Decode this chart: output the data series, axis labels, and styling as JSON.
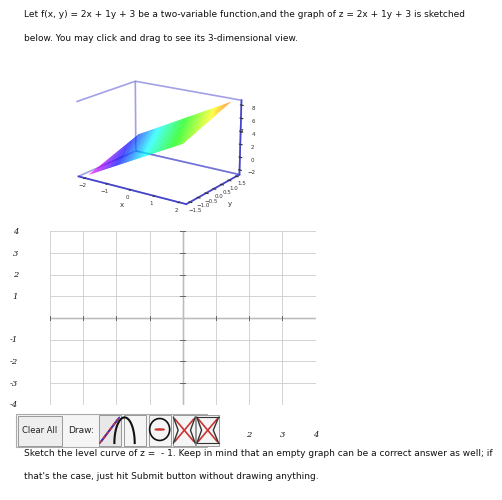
{
  "title_line1": "Let f(x, y) = 2x + 1y + 3 be a two-variable function,and the graph of z = 2x + 1y + 3 is sketched",
  "title_line2": "below. You may click and drag to see its 3-dimensional view.",
  "bottom_text_line1": "Sketch the level curve of z =  - 1. Keep in mind that an empty graph can be a correct answer as well; if",
  "bottom_text_line2": "that's the case, just hit Submit button without drawing anything.",
  "grid_xlim": [
    -4,
    4
  ],
  "grid_ylim": [
    -4,
    4
  ],
  "bg_color": "#ffffff",
  "grid_color": "#cccccc",
  "axis_color": "#666666",
  "text_color": "#111111",
  "box_color": "#4444cc",
  "x_range": [
    -2,
    2
  ],
  "y_range": [
    -1.5,
    1.5
  ],
  "z_ticks": [
    -2,
    0,
    2,
    4,
    6,
    8
  ],
  "elev": 18,
  "azim": -55
}
